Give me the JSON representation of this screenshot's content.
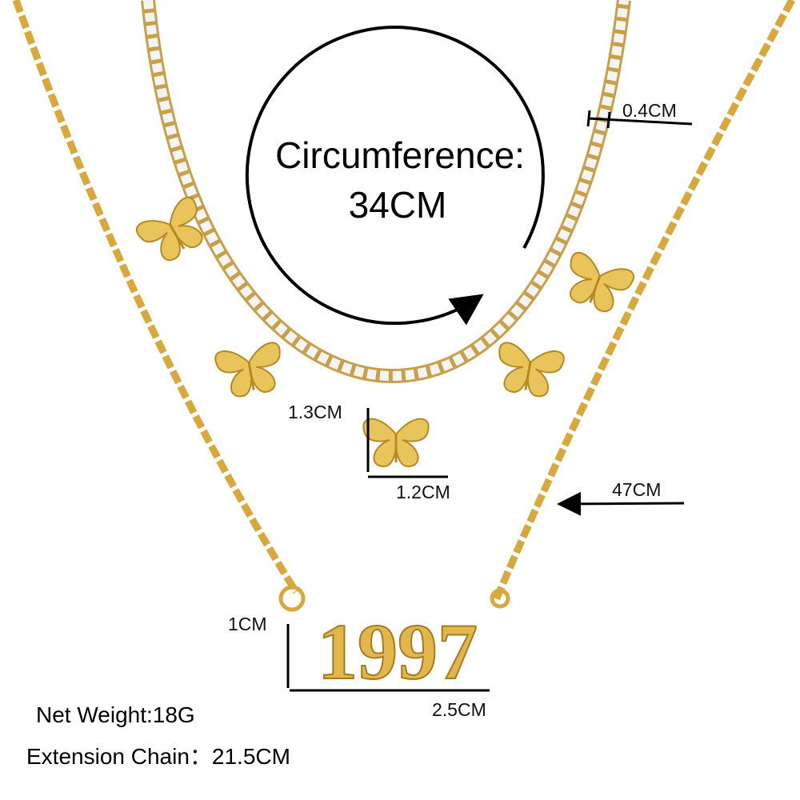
{
  "circumference": {
    "label": "Circumference:",
    "value": "34CM"
  },
  "dimensions": {
    "stone_width": "0.4CM",
    "butterfly_height": "1.3CM",
    "butterfly_width": "1.2CM",
    "chain_length": "47CM",
    "pendant_height": "1CM",
    "pendant_width": "2.5CM"
  },
  "pendant_text": "1997",
  "specs": {
    "net_weight": "Net Weight:18G",
    "extension_chain": "Extension Chain：21.5CM"
  }
}
